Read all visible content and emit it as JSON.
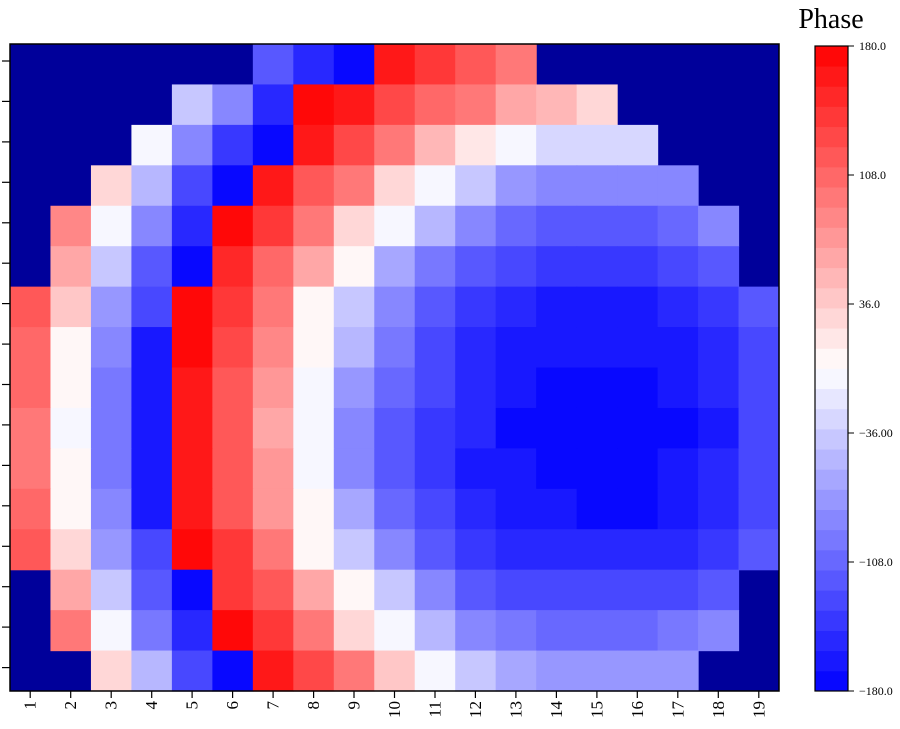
{
  "chart_data": {
    "type": "heatmap",
    "title": "Phase",
    "x_tick_labels": [
      "1",
      "2",
      "3",
      "4",
      "5",
      "6",
      "7",
      "8",
      "9",
      "10",
      "11",
      "12",
      "13",
      "14",
      "15",
      "16",
      "17",
      "18",
      "19"
    ],
    "colorbar": {
      "min": -180.0,
      "max": 180.0,
      "steps": 32,
      "tick_values": [
        180.0,
        108.0,
        36.0,
        -36.0,
        -108.0,
        -180.0
      ],
      "tick_labels": [
        "180.0",
        "108.0",
        "36.0",
        "−36.00",
        "−108.0",
        "−180.0"
      ],
      "colors_low_to_high": [
        "#0000ff",
        "#ffffff",
        "#ff0000"
      ]
    },
    "background_color": "#00009a",
    "rows": 16,
    "cols": 19,
    "values": [
      [
        null,
        null,
        null,
        null,
        null,
        null,
        -120,
        -155,
        -180,
        162,
        140,
        118,
        100,
        null,
        null,
        null,
        null,
        null,
        null
      ],
      [
        null,
        null,
        null,
        null,
        -40,
        -90,
        -155,
        178,
        158,
        130,
        105,
        90,
        65,
        45,
        30,
        null,
        null,
        null,
        null
      ],
      [
        null,
        null,
        null,
        -5,
        -80,
        -140,
        -180,
        158,
        125,
        95,
        55,
        18,
        -10,
        -25,
        -25,
        -25,
        null,
        null,
        null
      ],
      [
        null,
        null,
        30,
        -50,
        -130,
        -180,
        158,
        120,
        90,
        30,
        -5,
        -45,
        -70,
        -80,
        -80,
        -80,
        -80,
        null,
        null
      ],
      [
        null,
        85,
        -5,
        -90,
        -155,
        170,
        140,
        90,
        30,
        -10,
        -55,
        -85,
        -105,
        -115,
        -115,
        -115,
        -110,
        -85,
        null
      ],
      [
        null,
        60,
        -40,
        -120,
        -180,
        148,
        110,
        60,
        0,
        -60,
        -95,
        -120,
        -130,
        -140,
        -140,
        -140,
        -135,
        -120,
        null
      ],
      [
        120,
        35,
        -70,
        -130,
        175,
        135,
        100,
        10,
        -40,
        -80,
        -120,
        -140,
        -155,
        -160,
        -160,
        -160,
        -155,
        -140,
        -115
      ],
      [
        110,
        10,
        -85,
        -160,
        170,
        125,
        85,
        5,
        -55,
        -95,
        -130,
        -150,
        -160,
        -165,
        -165,
        -165,
        -160,
        -150,
        -125
      ],
      [
        105,
        10,
        -95,
        -165,
        168,
        120,
        75,
        -10,
        -75,
        -110,
        -135,
        -150,
        -165,
        -170,
        -170,
        -170,
        -165,
        -155,
        -130
      ],
      [
        90,
        -5,
        -100,
        -165,
        162,
        115,
        60,
        -10,
        -80,
        -115,
        -140,
        -155,
        -170,
        -175,
        -180,
        -170,
        -170,
        -160,
        -130
      ],
      [
        100,
        5,
        -100,
        -165,
        162,
        115,
        70,
        -10,
        -80,
        -115,
        -140,
        -160,
        -165,
        -175,
        -170,
        -170,
        -165,
        -155,
        -135
      ],
      [
        110,
        10,
        -85,
        -160,
        165,
        120,
        75,
        0,
        -65,
        -105,
        -130,
        -150,
        -160,
        -165,
        -170,
        -170,
        -160,
        -150,
        -130
      ],
      [
        120,
        30,
        -75,
        -135,
        175,
        135,
        95,
        10,
        -35,
        -80,
        -115,
        -140,
        -150,
        -155,
        -155,
        -155,
        -150,
        -140,
        -120
      ],
      [
        null,
        65,
        -40,
        -120,
        -180,
        145,
        120,
        60,
        10,
        -45,
        -90,
        -115,
        -125,
        -130,
        -130,
        -130,
        -125,
        -115,
        null
      ],
      [
        null,
        95,
        -10,
        -95,
        -150,
        172,
        140,
        95,
        30,
        -5,
        -50,
        -80,
        -100,
        -105,
        -105,
        -105,
        -100,
        -80,
        null
      ],
      [
        null,
        null,
        25,
        -55,
        -125,
        -180,
        158,
        125,
        100,
        40,
        -5,
        -40,
        -65,
        -75,
        -75,
        -75,
        -75,
        null,
        null
      ]
    ]
  }
}
